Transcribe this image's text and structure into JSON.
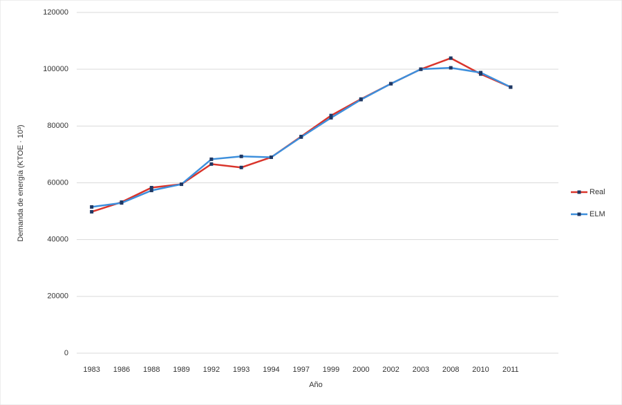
{
  "chart_data": {
    "type": "line",
    "x_label": "Año",
    "y_label": "Demanda de energía (KTOE · 10³)",
    "categories": [
      "1983",
      "1986",
      "1988",
      "1989",
      "1992",
      "1993",
      "1994",
      "1997",
      "1999",
      "2000",
      "2002",
      "2003",
      "2008",
      "2010",
      "2011"
    ],
    "series": [
      {
        "name": "Real",
        "color": "#d9342b",
        "values": [
          49800,
          53200,
          58300,
          59500,
          66600,
          65400,
          69000,
          76300,
          83700,
          89500,
          94900,
          100000,
          103900,
          98300,
          93700
        ]
      },
      {
        "name": "ELM",
        "color": "#3d8fdc",
        "values": [
          51500,
          52900,
          57300,
          59500,
          68300,
          69300,
          69000,
          76100,
          82900,
          89300,
          94900,
          100000,
          100500,
          98800,
          93700
        ]
      }
    ],
    "ylim": [
      0,
      120000
    ],
    "yticks": [
      0,
      20000,
      40000,
      60000,
      80000,
      100000,
      120000
    ],
    "grid": true,
    "legend": "right"
  }
}
